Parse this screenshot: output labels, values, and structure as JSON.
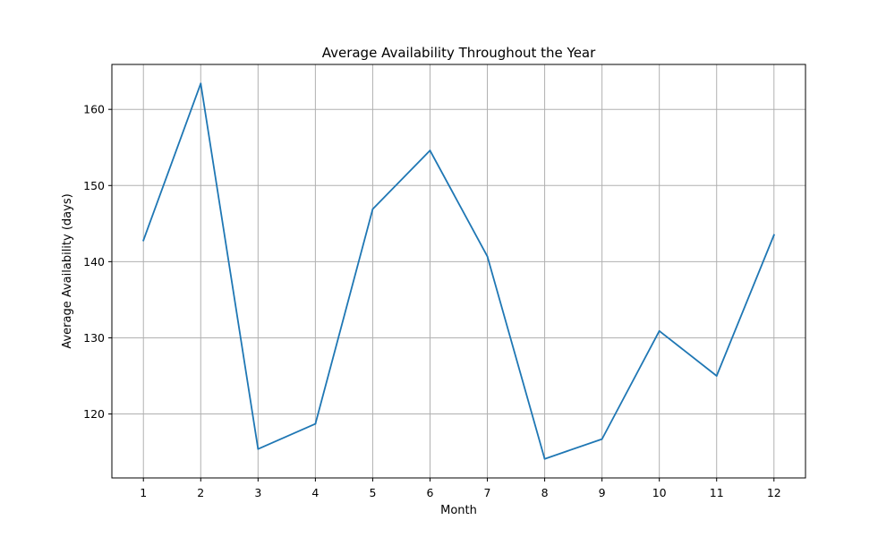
{
  "chart_data": {
    "type": "line",
    "title": "Average Availability Throughout the Year",
    "xlabel": "Month",
    "ylabel": "Average Availability (days)",
    "x": [
      1,
      2,
      3,
      4,
      5,
      6,
      7,
      8,
      9,
      10,
      11,
      12
    ],
    "x_tick_labels": [
      "1",
      "2",
      "3",
      "4",
      "5",
      "6",
      "7",
      "8",
      "9",
      "10",
      "11",
      "12"
    ],
    "series": [
      {
        "values": [
          142.8,
          163.4,
          115.4,
          118.7,
          146.9,
          154.6,
          140.7,
          114.1,
          116.7,
          130.9,
          125.0,
          143.5
        ],
        "color": "#1f77b4"
      }
    ],
    "y_ticks": [
      120,
      130,
      140,
      150,
      160
    ],
    "y_tick_labels": [
      "120",
      "130",
      "140",
      "150",
      "160"
    ],
    "xlim": [
      0.45,
      12.55
    ],
    "ylim": [
      111.6,
      165.9
    ],
    "grid": true
  }
}
